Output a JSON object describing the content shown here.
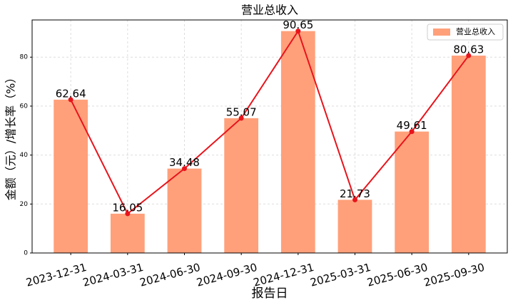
{
  "chart_data": {
    "type": "bar",
    "title": "营业总收入",
    "xlabel": "报告日",
    "ylabel": "金额（元）/增长率（%）",
    "categories": [
      "2023-12-31",
      "2024-03-31",
      "2024-06-30",
      "2024-09-30",
      "2024-12-31",
      "2025-03-31",
      "2025-06-30",
      "2025-09-30"
    ],
    "series": [
      {
        "name": "营业总收入",
        "color": "#ffa07a",
        "values": [
          62.64,
          16.05,
          34.48,
          55.07,
          90.65,
          21.73,
          49.61,
          80.63
        ]
      }
    ],
    "line_color": "#e8141c",
    "ylim": [
      0,
      95.2
    ],
    "yticks": [
      0,
      20,
      40,
      60,
      80
    ],
    "grid": true,
    "legend": "upper right"
  }
}
